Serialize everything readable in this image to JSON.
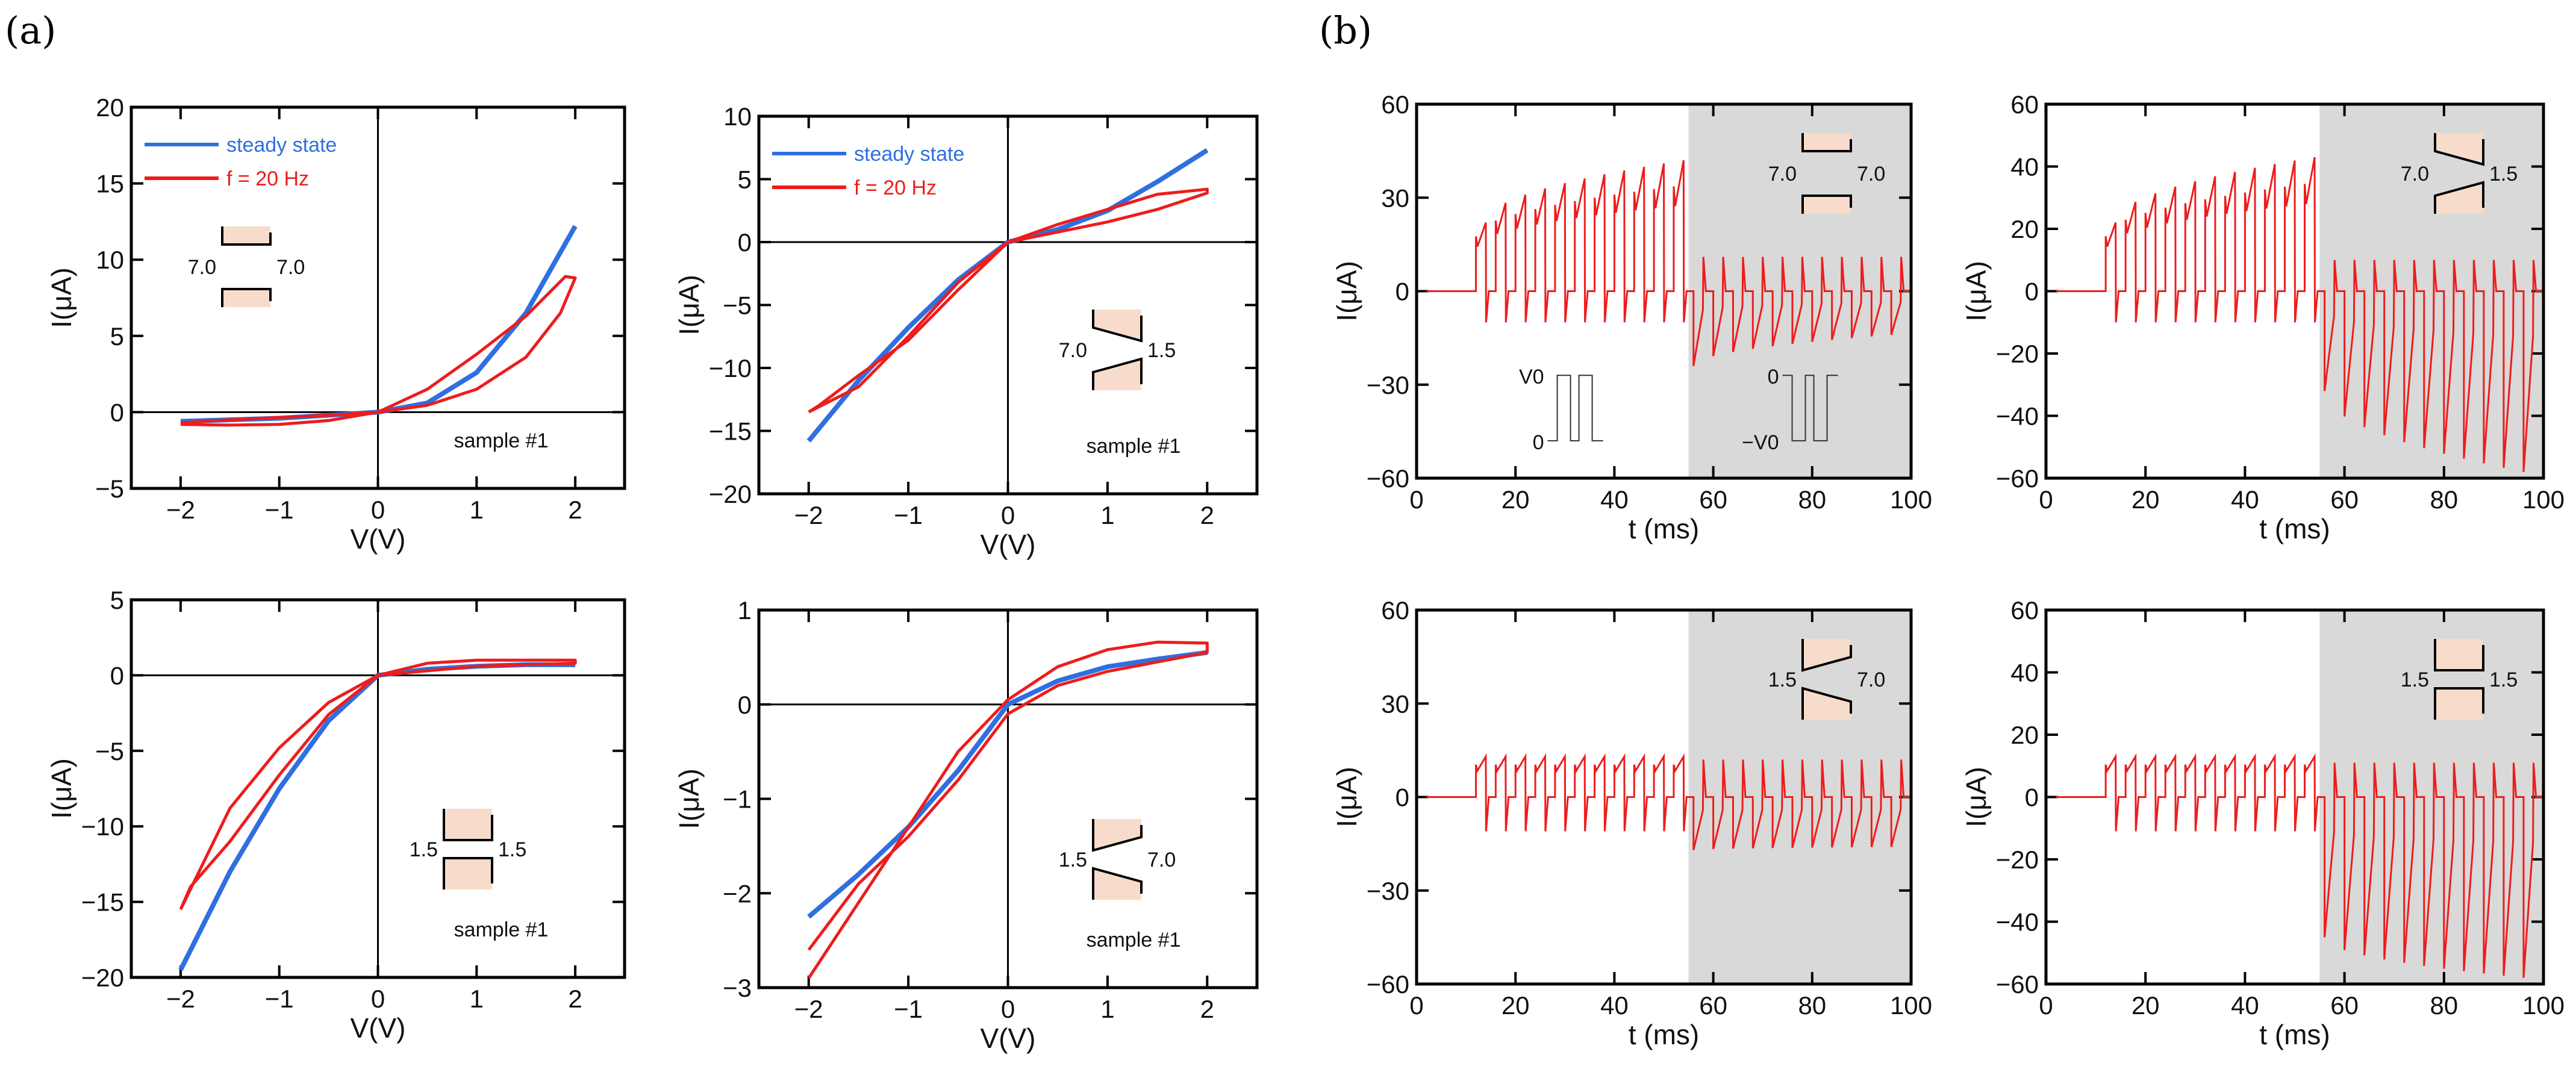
{
  "panel_labels": {
    "a": "(a)",
    "b": "(b)"
  },
  "colors": {
    "steady": "#2f6fe0",
    "pulsed": "#ee1c1c",
    "shade": "#d9d9d9",
    "inset_fill": "#f7dccb"
  },
  "chart_data": [
    {
      "id": "a1",
      "type": "line",
      "title": "",
      "xlabel": "V(V)",
      "ylabel": "I(μA)",
      "xlim": [
        -2.5,
        2.5
      ],
      "ylim": [
        -5,
        20
      ],
      "xticks": [
        -2,
        -1,
        0,
        1,
        2
      ],
      "yticks": [
        -5,
        0,
        5,
        10,
        15,
        20
      ],
      "legend": [
        "steady state",
        "f = 20 Hz"
      ],
      "legend_position": "top-left",
      "inset": {
        "left": "7.0",
        "right": "7.0"
      },
      "annotation": "sample #1",
      "series": [
        {
          "name": "steady state",
          "points": [
            [
              -2,
              -0.6
            ],
            [
              -1.5,
              -0.5
            ],
            [
              -1,
              -0.4
            ],
            [
              -0.5,
              -0.2
            ],
            [
              0,
              0
            ],
            [
              0.5,
              0.6
            ],
            [
              1,
              2.6
            ],
            [
              1.5,
              6.5
            ],
            [
              2,
              12.2
            ]
          ]
        },
        {
          "name": "f = 20 Hz",
          "points": [
            [
              -2,
              -0.8
            ],
            [
              -1.5,
              -0.85
            ],
            [
              -1,
              -0.8
            ],
            [
              -0.5,
              -0.55
            ],
            [
              0,
              0
            ],
            [
              0.5,
              0.45
            ],
            [
              1,
              1.5
            ],
            [
              1.5,
              3.6
            ],
            [
              1.85,
              6.5
            ],
            [
              2,
              8.8
            ],
            [
              1.9,
              8.9
            ],
            [
              1.5,
              6.3
            ],
            [
              1,
              3.8
            ],
            [
              0.5,
              1.5
            ],
            [
              0,
              0
            ],
            [
              -0.5,
              -0.2
            ],
            [
              -1,
              -0.35
            ],
            [
              -1.5,
              -0.5
            ],
            [
              -2,
              -0.7
            ]
          ]
        }
      ]
    },
    {
      "id": "a2",
      "type": "line",
      "title": "",
      "xlabel": "V(V)",
      "ylabel": "I(μA)",
      "xlim": [
        -2.5,
        2.5
      ],
      "ylim": [
        -20,
        10
      ],
      "xticks": [
        -2,
        -1,
        0,
        1,
        2
      ],
      "yticks": [
        -20,
        -15,
        -10,
        -5,
        0,
        5,
        10
      ],
      "legend": [
        "steady state",
        "f = 20 Hz"
      ],
      "legend_position": "top-left",
      "inset": {
        "left": "7.0",
        "right": "1.5"
      },
      "annotation": "sample #1",
      "series": [
        {
          "name": "steady state",
          "points": [
            [
              -2,
              -15.8
            ],
            [
              -1.5,
              -11
            ],
            [
              -1,
              -6.8
            ],
            [
              -0.5,
              -3
            ],
            [
              0,
              0
            ],
            [
              0.5,
              1
            ],
            [
              1,
              2.5
            ],
            [
              1.5,
              4.8
            ],
            [
              2,
              7.3
            ]
          ]
        },
        {
          "name": "f = 20 Hz",
          "points": [
            [
              -2,
              -13.5
            ],
            [
              -1.5,
              -11.5
            ],
            [
              -1,
              -7.5
            ],
            [
              -0.5,
              -3.2
            ],
            [
              0,
              0
            ],
            [
              0.5,
              0.8
            ],
            [
              1,
              1.6
            ],
            [
              1.5,
              2.6
            ],
            [
              2,
              3.9
            ],
            [
              2,
              4.2
            ],
            [
              1.5,
              3.8
            ],
            [
              1,
              2.6
            ],
            [
              0.5,
              1.4
            ],
            [
              0,
              0
            ],
            [
              -0.5,
              -3.8
            ],
            [
              -1,
              -7.8
            ],
            [
              -1.5,
              -10.6
            ],
            [
              -1.9,
              -13
            ],
            [
              -2,
              -13.5
            ]
          ]
        }
      ]
    },
    {
      "id": "a3",
      "type": "line",
      "title": "",
      "xlabel": "V(V)",
      "ylabel": "I(μA)",
      "xlim": [
        -2.5,
        2.5
      ],
      "ylim": [
        -20,
        5
      ],
      "xticks": [
        -2,
        -1,
        0,
        1,
        2
      ],
      "yticks": [
        -20,
        -15,
        -10,
        -5,
        0,
        5
      ],
      "inset": {
        "left": "1.5",
        "right": "1.5"
      },
      "annotation": "sample #1",
      "series": [
        {
          "name": "steady state",
          "points": [
            [
              -2,
              -19.5
            ],
            [
              -1.5,
              -13
            ],
            [
              -1,
              -7.5
            ],
            [
              -0.5,
              -3
            ],
            [
              0,
              0
            ],
            [
              0.5,
              0.4
            ],
            [
              1,
              0.6
            ],
            [
              1.5,
              0.7
            ],
            [
              2,
              0.7
            ]
          ]
        },
        {
          "name": "f = 20 Hz",
          "points": [
            [
              -2,
              -15.5
            ],
            [
              -1.5,
              -8.8
            ],
            [
              -1,
              -4.8
            ],
            [
              -0.5,
              -1.8
            ],
            [
              0,
              0
            ],
            [
              0.5,
              0.8
            ],
            [
              1,
              1
            ],
            [
              1.5,
              1
            ],
            [
              2,
              1
            ],
            [
              2,
              0.8
            ],
            [
              1.5,
              0.7
            ],
            [
              1,
              0.6
            ],
            [
              0.5,
              0.3
            ],
            [
              0,
              0
            ],
            [
              -0.5,
              -2.6
            ],
            [
              -1,
              -6.6
            ],
            [
              -1.5,
              -11
            ],
            [
              -1.9,
              -14
            ],
            [
              -2,
              -15.5
            ]
          ]
        }
      ]
    },
    {
      "id": "a4",
      "type": "line",
      "title": "",
      "xlabel": "V(V)",
      "ylabel": "I(μA)",
      "xlim": [
        -2.5,
        2.5
      ],
      "ylim": [
        -3,
        1
      ],
      "xticks": [
        -2,
        -1,
        0,
        1,
        2
      ],
      "yticks": [
        -3,
        -2,
        -1,
        0,
        1
      ],
      "inset": {
        "left": "1.5",
        "right": "7.0"
      },
      "annotation": "sample #1",
      "series": [
        {
          "name": "steady state",
          "points": [
            [
              -2,
              -2.25
            ],
            [
              -1.5,
              -1.8
            ],
            [
              -1,
              -1.3
            ],
            [
              -0.5,
              -0.7
            ],
            [
              0,
              0
            ],
            [
              0.5,
              0.25
            ],
            [
              1,
              0.4
            ],
            [
              1.5,
              0.48
            ],
            [
              2,
              0.55
            ]
          ]
        },
        {
          "name": "f = 20 Hz",
          "points": [
            [
              -2,
              -2.9
            ],
            [
              -1.5,
              -2.1
            ],
            [
              -1,
              -1.3
            ],
            [
              -0.5,
              -0.5
            ],
            [
              0,
              0.05
            ],
            [
              0.5,
              0.4
            ],
            [
              1,
              0.58
            ],
            [
              1.5,
              0.66
            ],
            [
              2,
              0.65
            ],
            [
              2,
              0.55
            ],
            [
              1.5,
              0.45
            ],
            [
              1,
              0.35
            ],
            [
              0.5,
              0.2
            ],
            [
              0,
              -0.1
            ],
            [
              -0.5,
              -0.8
            ],
            [
              -1,
              -1.4
            ],
            [
              -1.5,
              -1.9
            ],
            [
              -2,
              -2.6
            ]
          ]
        }
      ]
    },
    {
      "id": "b1",
      "type": "line",
      "xlabel": "t (ms)",
      "ylabel": "I(μA)",
      "xlim": [
        0,
        100
      ],
      "ylim": [
        -60,
        60
      ],
      "xticks": [
        0,
        20,
        40,
        60,
        80,
        100
      ],
      "yticks": [
        -60,
        -30,
        0,
        30,
        60
      ],
      "shaded_from": 55,
      "inset": {
        "left": "7.0",
        "right": "7.0"
      },
      "pulse_schematic": {
        "pos_high": "V0",
        "pos_low": "0",
        "neg_high": "0",
        "neg_low": "−V0"
      },
      "pulses": {
        "start": 12,
        "period": 4,
        "switch": 55,
        "end": 97,
        "phase1": {
          "peak_first": 22,
          "peak_last": 42,
          "trough": -10
        },
        "phase2": {
          "peak": 11,
          "trough_first": -24,
          "trough_last": -14
        }
      }
    },
    {
      "id": "b2",
      "type": "line",
      "xlabel": "t (ms)",
      "ylabel": "I(μA)",
      "xlim": [
        0,
        100
      ],
      "ylim": [
        -60,
        60
      ],
      "xticks": [
        0,
        20,
        40,
        60,
        80,
        100
      ],
      "yticks": [
        -60,
        -40,
        -20,
        0,
        20,
        40,
        60
      ],
      "shaded_from": 55,
      "inset": {
        "left": "7.0",
        "right": "1.5"
      },
      "pulses": {
        "start": 12,
        "period": 4,
        "switch": 55,
        "end": 97,
        "phase1": {
          "peak_first": 22,
          "peak_last": 43,
          "trough": -10
        },
        "phase2": {
          "peak": 10,
          "trough_first": -32,
          "trough_last": -58
        }
      }
    },
    {
      "id": "b3",
      "type": "line",
      "xlabel": "t (ms)",
      "ylabel": "I(μA)",
      "xlim": [
        0,
        100
      ],
      "ylim": [
        -60,
        60
      ],
      "xticks": [
        0,
        20,
        40,
        60,
        80,
        100
      ],
      "yticks": [
        -60,
        -30,
        0,
        30,
        60
      ],
      "shaded_from": 55,
      "inset": {
        "left": "1.5",
        "right": "7.0"
      },
      "pulses": {
        "start": 12,
        "period": 4,
        "switch": 55,
        "end": 97,
        "phase1": {
          "peak_first": 13,
          "peak_last": 13,
          "trough": -11
        },
        "phase2": {
          "peak": 12,
          "trough_first": -17,
          "trough_last": -16
        }
      }
    },
    {
      "id": "b4",
      "type": "line",
      "xlabel": "t (ms)",
      "ylabel": "I(μA)",
      "xlim": [
        0,
        100
      ],
      "ylim": [
        -60,
        60
      ],
      "xticks": [
        0,
        20,
        40,
        60,
        80,
        100
      ],
      "yticks": [
        -60,
        -40,
        -20,
        0,
        20,
        40,
        60
      ],
      "shaded_from": 55,
      "inset": {
        "left": "1.5",
        "right": "1.5"
      },
      "pulses": {
        "start": 12,
        "period": 4,
        "switch": 55,
        "end": 97,
        "phase1": {
          "peak_first": 13,
          "peak_last": 13,
          "trough": -11
        },
        "phase2": {
          "peak": 11,
          "trough_first": -45,
          "trough_last": -58
        }
      }
    }
  ]
}
